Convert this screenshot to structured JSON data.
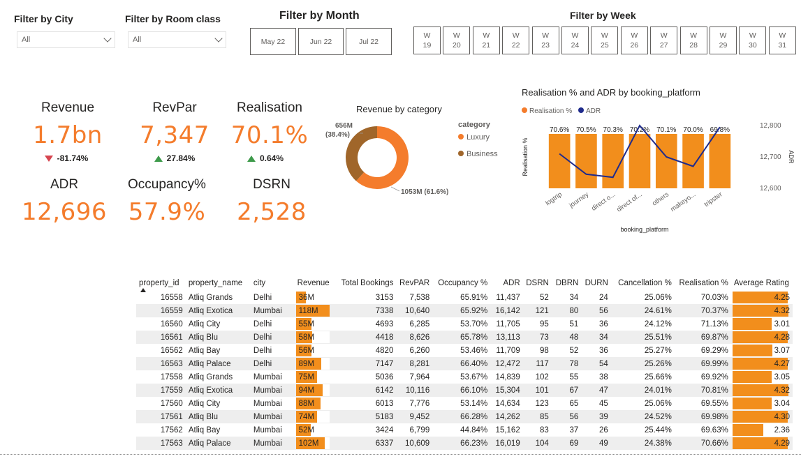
{
  "filters": {
    "city": {
      "title": "Filter by City",
      "value": "All"
    },
    "room_class": {
      "title": "Filter by Room class",
      "value": "All"
    },
    "month": {
      "title": "Filter by Month",
      "options": [
        "May 22",
        "Jun 22",
        "Jul 22"
      ]
    },
    "week": {
      "title": "Filter by Week",
      "options": [
        {
          "top": "W",
          "num": "19"
        },
        {
          "top": "W",
          "num": "20"
        },
        {
          "top": "W",
          "num": "21"
        },
        {
          "top": "W",
          "num": "22"
        },
        {
          "top": "W",
          "num": "23"
        },
        {
          "top": "W",
          "num": "24"
        },
        {
          "top": "W",
          "num": "25"
        },
        {
          "top": "W",
          "num": "26"
        },
        {
          "top": "W",
          "num": "27"
        },
        {
          "top": "W",
          "num": "28"
        },
        {
          "top": "W",
          "num": "29"
        },
        {
          "top": "W",
          "num": "30"
        },
        {
          "top": "W",
          "num": "31"
        }
      ]
    }
  },
  "kpis": {
    "revenue": {
      "label": "Revenue",
      "value": "1.7bn",
      "delta": "-81.74%",
      "direction": "down"
    },
    "revpar": {
      "label": "RevPar",
      "value": "7,347",
      "delta": "27.84%",
      "direction": "up"
    },
    "realisation": {
      "label": "Realisation",
      "value": "70.1%",
      "delta": "0.64%",
      "direction": "up"
    },
    "adr": {
      "label": "ADR",
      "value": "12,696"
    },
    "occupancy": {
      "label": "Occupancy%",
      "value": "57.9%"
    },
    "dsrn": {
      "label": "DSRN",
      "value": "2,528"
    }
  },
  "colors": {
    "accent": "#f47c2c",
    "business": "#a0662a",
    "adr_line": "#1f2b8c",
    "bar": "#f28e1c",
    "up": "#3d9a4a",
    "down": "#d64550"
  },
  "chart_data": [
    {
      "type": "pie",
      "title": "Revenue by category",
      "legend_title": "category",
      "legend_position": "right",
      "categories": [
        "Luxury",
        "Business"
      ],
      "values": [
        1053,
        656
      ],
      "labels": [
        {
          "main": "1053M (61.6%)"
        },
        {
          "main": "656M",
          "sub": "(38.4%)"
        }
      ]
    },
    {
      "type": "bar",
      "title": "Realisation % and ADR by booking_platform",
      "categories": [
        "logtrip",
        "journey",
        "direct o...",
        "direct of...",
        "others",
        "makeyo...",
        "tripster"
      ],
      "xlabel": "booking_platform",
      "ylabel": "Realisation %",
      "y2label": "ADR",
      "legend_position": "top-left",
      "series": [
        {
          "name": "Realisation %",
          "type": "bar",
          "values": [
            70.6,
            70.5,
            70.3,
            70.2,
            70.1,
            70.0,
            69.8
          ],
          "labels": [
            "70.6%",
            "70.5%",
            "70.3%",
            "70.2%",
            "70.1%",
            "70.0%",
            "69.8%"
          ]
        },
        {
          "name": "ADR",
          "type": "line",
          "values": [
            12710,
            12645,
            12635,
            12800,
            12700,
            12670,
            12795
          ]
        }
      ],
      "y2_ticks": [
        "12,800",
        "12,700",
        "12,600"
      ],
      "y2lim": [
        12600,
        12800
      ]
    }
  ],
  "table": {
    "columns": [
      "property_id",
      "property_name",
      "city",
      "Revenue",
      "Total Bookings",
      "RevPAR",
      "Occupancy %",
      "ADR",
      "DSRN",
      "DBRN",
      "DURN",
      "Cancellation %",
      "Realisation %",
      "Average Rating"
    ],
    "rows": [
      {
        "id": "16558",
        "name": "Atliq Grands",
        "city": "Delhi",
        "revenue": "36M",
        "rev_val": 36,
        "bookings": "3153",
        "revpar": "7,538",
        "occ": "65.91%",
        "adr": "11,437",
        "dsrn": "52",
        "dbrn": "34",
        "durn": "24",
        "cancel": "25.06%",
        "real": "70.03%",
        "rating": "4.25",
        "rating_val": 4.25
      },
      {
        "id": "16559",
        "name": "Atliq Exotica",
        "city": "Mumbai",
        "revenue": "118M",
        "rev_val": 118,
        "bookings": "7338",
        "revpar": "10,640",
        "occ": "65.92%",
        "adr": "16,142",
        "dsrn": "121",
        "dbrn": "80",
        "durn": "56",
        "cancel": "24.61%",
        "real": "70.37%",
        "rating": "4.32",
        "rating_val": 4.32
      },
      {
        "id": "16560",
        "name": "Atliq City",
        "city": "Delhi",
        "revenue": "55M",
        "rev_val": 55,
        "bookings": "4693",
        "revpar": "6,285",
        "occ": "53.70%",
        "adr": "11,705",
        "dsrn": "95",
        "dbrn": "51",
        "durn": "36",
        "cancel": "24.12%",
        "real": "71.13%",
        "rating": "3.01",
        "rating_val": 3.01
      },
      {
        "id": "16561",
        "name": "Atliq Blu",
        "city": "Delhi",
        "revenue": "58M",
        "rev_val": 58,
        "bookings": "4418",
        "revpar": "8,626",
        "occ": "65.78%",
        "adr": "13,113",
        "dsrn": "73",
        "dbrn": "48",
        "durn": "34",
        "cancel": "25.51%",
        "real": "69.87%",
        "rating": "4.28",
        "rating_val": 4.28
      },
      {
        "id": "16562",
        "name": "Atliq Bay",
        "city": "Delhi",
        "revenue": "56M",
        "rev_val": 56,
        "bookings": "4820",
        "revpar": "6,260",
        "occ": "53.46%",
        "adr": "11,709",
        "dsrn": "98",
        "dbrn": "52",
        "durn": "36",
        "cancel": "25.27%",
        "real": "69.29%",
        "rating": "3.07",
        "rating_val": 3.07
      },
      {
        "id": "16563",
        "name": "Atliq Palace",
        "city": "Delhi",
        "revenue": "89M",
        "rev_val": 89,
        "bookings": "7147",
        "revpar": "8,281",
        "occ": "66.40%",
        "adr": "12,472",
        "dsrn": "117",
        "dbrn": "78",
        "durn": "54",
        "cancel": "25.26%",
        "real": "69.99%",
        "rating": "4.27",
        "rating_val": 4.27
      },
      {
        "id": "17558",
        "name": "Atliq Grands",
        "city": "Mumbai",
        "revenue": "75M",
        "rev_val": 75,
        "bookings": "5036",
        "revpar": "7,964",
        "occ": "53.67%",
        "adr": "14,839",
        "dsrn": "102",
        "dbrn": "55",
        "durn": "38",
        "cancel": "25.66%",
        "real": "69.92%",
        "rating": "3.05",
        "rating_val": 3.05
      },
      {
        "id": "17559",
        "name": "Atliq Exotica",
        "city": "Mumbai",
        "revenue": "94M",
        "rev_val": 94,
        "bookings": "6142",
        "revpar": "10,116",
        "occ": "66.10%",
        "adr": "15,304",
        "dsrn": "101",
        "dbrn": "67",
        "durn": "47",
        "cancel": "24.01%",
        "real": "70.81%",
        "rating": "4.32",
        "rating_val": 4.32
      },
      {
        "id": "17560",
        "name": "Atliq City",
        "city": "Mumbai",
        "revenue": "88M",
        "rev_val": 88,
        "bookings": "6013",
        "revpar": "7,776",
        "occ": "53.14%",
        "adr": "14,634",
        "dsrn": "123",
        "dbrn": "65",
        "durn": "45",
        "cancel": "25.06%",
        "real": "69.55%",
        "rating": "3.04",
        "rating_val": 3.04
      },
      {
        "id": "17561",
        "name": "Atliq Blu",
        "city": "Mumbai",
        "revenue": "74M",
        "rev_val": 74,
        "bookings": "5183",
        "revpar": "9,452",
        "occ": "66.28%",
        "adr": "14,262",
        "dsrn": "85",
        "dbrn": "56",
        "durn": "39",
        "cancel": "24.52%",
        "real": "69.98%",
        "rating": "4.30",
        "rating_val": 4.3
      },
      {
        "id": "17562",
        "name": "Atliq Bay",
        "city": "Mumbai",
        "revenue": "52M",
        "rev_val": 52,
        "bookings": "3424",
        "revpar": "6,799",
        "occ": "44.84%",
        "adr": "15,162",
        "dsrn": "83",
        "dbrn": "37",
        "durn": "26",
        "cancel": "25.44%",
        "real": "69.63%",
        "rating": "2.36",
        "rating_val": 2.36
      },
      {
        "id": "17563",
        "name": "Atliq Palace",
        "city": "Mumbai",
        "revenue": "102M",
        "rev_val": 102,
        "bookings": "6337",
        "revpar": "10,609",
        "occ": "66.23%",
        "adr": "16,019",
        "dsrn": "104",
        "dbrn": "69",
        "durn": "49",
        "cancel": "24.38%",
        "real": "70.66%",
        "rating": "4.29",
        "rating_val": 4.29
      }
    ]
  }
}
